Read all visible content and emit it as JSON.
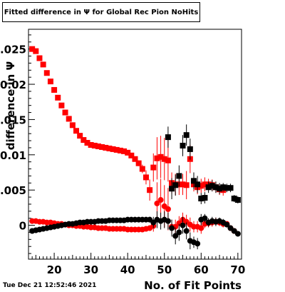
{
  "title": "Fitted difference in  Ψ  for Global Rec Pion NoHits",
  "timestamp": "Tue Dec 21 12:52:46 2021",
  "chart_data": {
    "type": "scatter",
    "xlabel": "No. of Fit Points",
    "ylabel": "difference in Ψ",
    "xlim": [
      13,
      71
    ],
    "ylim": [
      -0.0048,
      0.0278
    ],
    "x_ticks": [
      20,
      30,
      40,
      50,
      60,
      70
    ],
    "y_ticks": [
      0,
      0.005,
      0.01,
      0.015,
      0.02,
      0.025
    ],
    "y_tick_labels": [
      "0",
      "0.005",
      "0.01",
      "0.015",
      "0.02",
      "0.025"
    ],
    "series": [
      {
        "color": "#ff0000",
        "marker": "square",
        "x": [
          14,
          15,
          16,
          17,
          18,
          19,
          20,
          21,
          22,
          23,
          24,
          25,
          26,
          27,
          28,
          29,
          30,
          31,
          32,
          33,
          34,
          35,
          36,
          37,
          38,
          39,
          40,
          41,
          42,
          43,
          44,
          45,
          46,
          47,
          48,
          49,
          50,
          51,
          52,
          53,
          54,
          55,
          56,
          57,
          58,
          59,
          60,
          61,
          62,
          63,
          64,
          65,
          66
        ],
        "values": [
          0.025,
          0.0247,
          0.0237,
          0.0228,
          0.0216,
          0.0204,
          0.0192,
          0.0181,
          0.017,
          0.016,
          0.0151,
          0.0142,
          0.0134,
          0.0127,
          0.0121,
          0.0117,
          0.0114,
          0.0113,
          0.0112,
          0.0111,
          0.011,
          0.0109,
          0.0108,
          0.0107,
          0.0106,
          0.0105,
          0.0103,
          0.0099,
          0.0094,
          0.0088,
          0.008,
          0.0068,
          0.005,
          0.0082,
          0.0095,
          0.0097,
          0.0094,
          0.0092,
          0.006,
          0.0058,
          0.0058,
          0.0058,
          0.0057,
          0.0094,
          0.0058,
          0.0054,
          0.0056,
          0.0058,
          0.0058,
          0.0057,
          0.0054,
          0.0051,
          0.005
        ],
        "errors": [
          0.0002,
          0.0002,
          0.0002,
          0.0002,
          0.0002,
          0.0002,
          0.0002,
          0.0002,
          0.0002,
          0.0002,
          0.0002,
          0.0002,
          0.0002,
          0.0002,
          0.0002,
          0.0002,
          0.0002,
          0.0002,
          0.0002,
          0.0002,
          0.0002,
          0.0002,
          0.0002,
          0.0002,
          0.0002,
          0.0002,
          0.0002,
          0.0002,
          0.0003,
          0.0004,
          0.0006,
          0.001,
          0.0015,
          0.002,
          0.003,
          0.003,
          0.003,
          0.003,
          0.0015,
          0.0015,
          0.0015,
          0.0015,
          0.002,
          0.002,
          0.001,
          0.001,
          0.001,
          0.001,
          0.0008,
          0.0008,
          0.0008,
          0.0008,
          0.0008
        ]
      },
      {
        "color": "#000000",
        "marker": "square",
        "x": [
          51,
          52,
          53,
          54,
          55,
          56,
          57,
          58,
          59,
          60,
          61,
          62,
          63,
          64,
          65,
          66,
          67,
          68,
          69,
          70
        ],
        "values": [
          0.0125,
          0.0052,
          0.0057,
          0.007,
          0.0113,
          0.0128,
          0.0108,
          0.0063,
          0.0058,
          0.0038,
          0.0039,
          0.0054,
          0.0056,
          0.0054,
          0.0052,
          0.0054,
          0.0053,
          0.0053,
          0.0038,
          0.0036
        ],
        "errors": [
          0.0015,
          0.0015,
          0.0015,
          0.0015,
          0.0015,
          0.0015,
          0.0015,
          0.0012,
          0.0012,
          0.0008,
          0.0008,
          0.0008,
          0.0008,
          0.0008,
          0.0008,
          0.0006,
          0.0006,
          0.0006,
          0.0005,
          0.0005
        ]
      },
      {
        "color": "#ff0000",
        "marker": "circle",
        "x": [
          14,
          15,
          16,
          17,
          18,
          19,
          20,
          21,
          22,
          23,
          24,
          25,
          26,
          27,
          28,
          29,
          30,
          31,
          32,
          33,
          34,
          35,
          36,
          37,
          38,
          39,
          40,
          41,
          42,
          43,
          44,
          45,
          46,
          47,
          48,
          49,
          50,
          51,
          52,
          53,
          54,
          55,
          56,
          57,
          58,
          59,
          60,
          61,
          62,
          63,
          64,
          65,
          66,
          67,
          68,
          69
        ],
        "values": [
          0.0006,
          0.0006,
          0.0005,
          0.0005,
          0.0004,
          0.0004,
          0.0003,
          0.0002,
          0.0002,
          0.0001,
          0.0,
          0.0,
          -0.0001,
          -0.0001,
          -0.0002,
          -0.0002,
          -0.0003,
          -0.0003,
          -0.0004,
          -0.0004,
          -0.0004,
          -0.0005,
          -0.0005,
          -0.0005,
          -0.0005,
          -0.0005,
          -0.0006,
          -0.0006,
          -0.0006,
          -0.0006,
          -0.0006,
          -0.0005,
          -0.0004,
          -0.0001,
          0.0031,
          0.0036,
          0.0027,
          0.0023,
          -0.0002,
          -0.0002,
          0.0003,
          0.0008,
          0.0005,
          0.0001,
          -0.0002,
          -0.0002,
          -0.0004,
          0.0002,
          0.0003,
          0.0004,
          0.0005,
          0.0004,
          0.0002,
          0.0002,
          -0.0004,
          -0.0008
        ],
        "errors": [
          0.0002,
          0.0002,
          0.0002,
          0.0002,
          0.0002,
          0.0002,
          0.0002,
          0.0002,
          0.0002,
          0.0002,
          0.0002,
          0.0002,
          0.0002,
          0.0002,
          0.0002,
          0.0002,
          0.0002,
          0.0002,
          0.0002,
          0.0002,
          0.0002,
          0.0002,
          0.0002,
          0.0002,
          0.0002,
          0.0002,
          0.0002,
          0.0002,
          0.0002,
          0.0002,
          0.0002,
          0.0003,
          0.0004,
          0.0008,
          0.003,
          0.003,
          0.003,
          0.003,
          0.001,
          0.001,
          0.001,
          0.001,
          0.001,
          0.001,
          0.0008,
          0.0008,
          0.0008,
          0.0006,
          0.0006,
          0.0006,
          0.0006,
          0.0005,
          0.0005,
          0.0004,
          0.0004,
          0.0003
        ]
      },
      {
        "color": "#000000",
        "marker": "circle",
        "x": [
          14,
          15,
          16,
          17,
          18,
          19,
          20,
          21,
          22,
          23,
          24,
          25,
          26,
          27,
          28,
          29,
          30,
          31,
          32,
          33,
          34,
          35,
          36,
          37,
          38,
          39,
          40,
          41,
          42,
          43,
          44,
          45,
          46,
          47,
          48,
          49,
          50,
          51,
          52,
          53,
          54,
          55,
          56,
          57,
          58,
          59,
          60,
          61,
          62,
          63,
          64,
          65,
          66,
          67,
          68,
          69,
          70
        ],
        "values": [
          -0.0008,
          -0.0007,
          -0.0006,
          -0.0005,
          -0.0004,
          -0.0003,
          -0.0002,
          -0.0001,
          0.0,
          0.0001,
          0.0002,
          0.0002,
          0.0003,
          0.0004,
          0.0004,
          0.0005,
          0.0005,
          0.0005,
          0.0006,
          0.0006,
          0.0006,
          0.0007,
          0.0007,
          0.0007,
          0.0007,
          0.0007,
          0.0008,
          0.0008,
          0.0008,
          0.0008,
          0.0008,
          0.0008,
          0.0008,
          0.0004,
          0.0008,
          0.0006,
          0.0008,
          0.0006,
          -0.0004,
          -0.0015,
          -0.001,
          0.0,
          -0.0008,
          -0.0022,
          -0.0024,
          -0.0026,
          0.0008,
          0.001,
          0.0004,
          0.0006,
          0.0005,
          0.0006,
          0.0004,
          0.0001,
          -0.0004,
          -0.0008,
          -0.0012
        ],
        "errors": [
          0.0002,
          0.0002,
          0.0002,
          0.0002,
          0.0002,
          0.0002,
          0.0002,
          0.0002,
          0.0002,
          0.0002,
          0.0002,
          0.0002,
          0.0002,
          0.0002,
          0.0002,
          0.0002,
          0.0002,
          0.0002,
          0.0002,
          0.0002,
          0.0002,
          0.0002,
          0.0002,
          0.0002,
          0.0002,
          0.0002,
          0.0002,
          0.0002,
          0.0002,
          0.0002,
          0.0002,
          0.0003,
          0.0004,
          0.0008,
          0.0012,
          0.0012,
          0.0012,
          0.0012,
          0.0012,
          0.0012,
          0.0012,
          0.0012,
          0.0012,
          0.0012,
          0.0008,
          0.0008,
          0.0008,
          0.0006,
          0.0006,
          0.0006,
          0.0006,
          0.0005,
          0.0005,
          0.0004,
          0.0004,
          0.0003,
          0.0003
        ]
      }
    ]
  }
}
